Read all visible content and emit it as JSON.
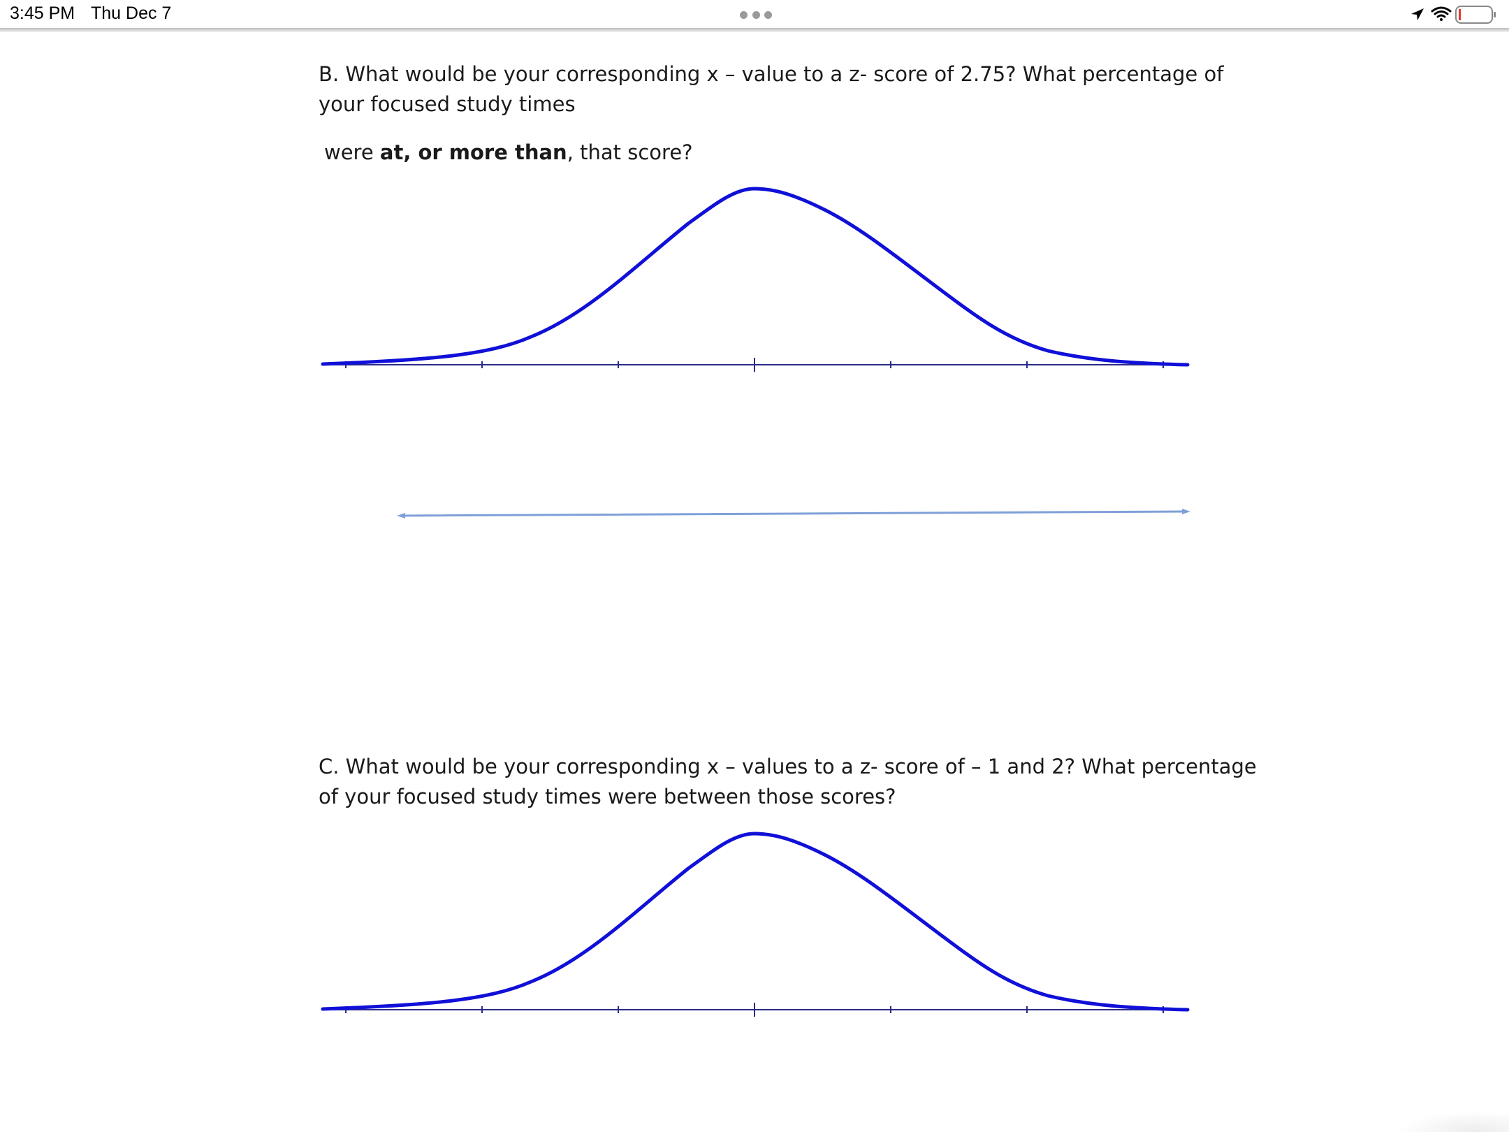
{
  "status_bar": {
    "time": "3:45 PM",
    "date": "Thu Dec 7",
    "icons": [
      "location-arrow-icon",
      "wifi-icon",
      "battery-icon"
    ]
  },
  "question_b": {
    "line1": "B.  What would be your corresponding x – value to a z- score of 2.75?  What percentage of",
    "line2": "your focused study times",
    "line3_prefix": "were ",
    "line3_bold": "at, or more than",
    "line3_suffix": ", that score?"
  },
  "question_c": {
    "line1": "C. What would be your corresponding x – values to a z- score of – 1 and 2?  What percentage",
    "line2": "of your focused study times were between those scores?"
  },
  "colors": {
    "curve": "#1010d8",
    "axis": "#2a2a8a",
    "number_line": "#7f9fd8"
  }
}
